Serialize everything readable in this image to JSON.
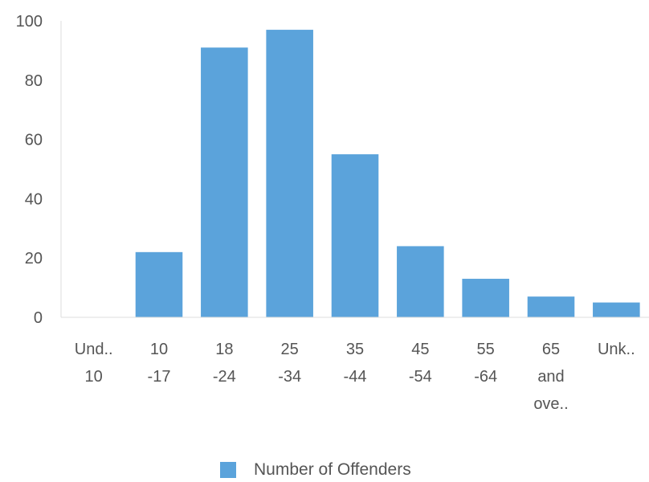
{
  "chart_data": {
    "type": "bar",
    "categories": [
      [
        "Und..",
        "10"
      ],
      [
        "10",
        "-17"
      ],
      [
        "18",
        "-24"
      ],
      [
        "25",
        "-34"
      ],
      [
        "35",
        "-44"
      ],
      [
        "45",
        "-54"
      ],
      [
        "55",
        "-64"
      ],
      [
        "65",
        "and",
        "ove.."
      ],
      [
        "Unk.."
      ]
    ],
    "series": [
      {
        "name": "Number of Offenders",
        "values": [
          0,
          22,
          91,
          97,
          55,
          24,
          13,
          7,
          5
        ]
      }
    ],
    "ylim": [
      0,
      100
    ],
    "yticks": [
      0,
      20,
      40,
      60,
      80,
      100
    ],
    "legend_position": "bottom-center",
    "grid": false
  },
  "colors": {
    "bar": "#5ba3db",
    "axis": "#dddddd"
  },
  "legend": {
    "label": "Number of Offenders"
  }
}
